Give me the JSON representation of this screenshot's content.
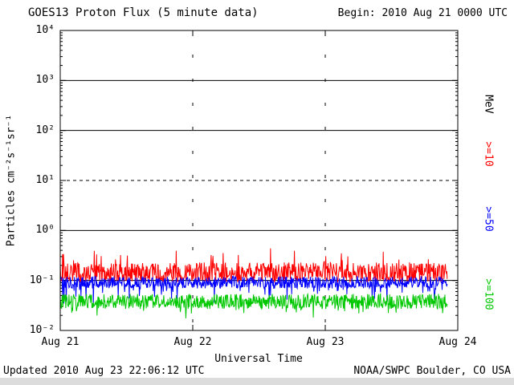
{
  "page": {
    "background": "#ffffff"
  },
  "header": {
    "title": "GOES13 Proton Flux (5 minute data)",
    "begin": "Begin: 2010 Aug 21 0000 UTC"
  },
  "axes": {
    "ylabel": "Particles cm⁻²s⁻¹sr⁻¹",
    "xlabel": "Universal Time",
    "y_ticks": [
      {
        "label": "10⁴",
        "log10": 4
      },
      {
        "label": "10³",
        "log10": 3
      },
      {
        "label": "10²",
        "log10": 2
      },
      {
        "label": "10¹",
        "log10": 1
      },
      {
        "label": "10⁰",
        "log10": 0
      },
      {
        "label": "10⁻¹",
        "log10": -1
      },
      {
        "label": "10⁻²",
        "log10": -2
      }
    ],
    "x_ticks": [
      "Aug 21",
      "Aug 22",
      "Aug 23",
      "Aug 24"
    ]
  },
  "right_labels": [
    {
      "text": "MeV",
      "color": "#000000"
    },
    {
      "text": ">=10",
      "color": "#ff0000"
    },
    {
      "text": ">=50",
      "color": "#0000ff"
    },
    {
      "text": ">=100",
      "color": "#00c800"
    }
  ],
  "footer": {
    "updated": "Updated 2010 Aug 23 22:06:12 UTC",
    "credit": "NOAA/SWPC Boulder, CO USA"
  },
  "chart_data": {
    "type": "line",
    "title": "GOES13 Proton Flux (5 minute data)",
    "xlabel": "Universal Time",
    "ylabel": "Particles cm⁻²s⁻¹sr⁻¹",
    "y_scale": "log10",
    "ylim_log10": [
      -2,
      4
    ],
    "y_tick_exponents": [
      4,
      3,
      2,
      1,
      0,
      -1,
      -2
    ],
    "x_tick_labels": [
      "Aug 21",
      "Aug 22",
      "Aug 23",
      "Aug 24"
    ],
    "x_start": "2010 Aug 21 0000 UTC",
    "x_end_axis": "2010 Aug 24 0000 UTC",
    "data_end": "2010 Aug 23 22:06 UTC",
    "data_end_fraction": 0.9738,
    "days": 3,
    "cadence_minutes": 5,
    "gridlines": {
      "solid_at_log10": [
        3,
        2,
        0,
        -1
      ],
      "dashed_at_log10": [
        1
      ],
      "vertical_dashed_at_days": [
        1,
        2
      ]
    },
    "series": [
      {
        "name": ">=10 MeV",
        "color": "#ff0000",
        "baseline_log10": -0.84,
        "noise_log10": 0.2,
        "spike_chance": 0.06,
        "spike_log10": 0.24,
        "approx_flux_range": [
          0.08,
          0.5
        ]
      },
      {
        "name": ">=50 MeV",
        "color": "#0000ff",
        "baseline_log10": -1.04,
        "noise_log10": 0.12,
        "spike_chance": 0.07,
        "spike_log10": -0.25,
        "approx_flux_range": [
          0.04,
          0.13
        ]
      },
      {
        "name": ">=100 MeV",
        "color": "#00c800",
        "baseline_log10": -1.42,
        "noise_log10": 0.15,
        "spike_chance": 0.06,
        "spike_log10": -0.15,
        "approx_flux_range": [
          0.018,
          0.06
        ]
      }
    ],
    "rng_seed": 20100821
  }
}
